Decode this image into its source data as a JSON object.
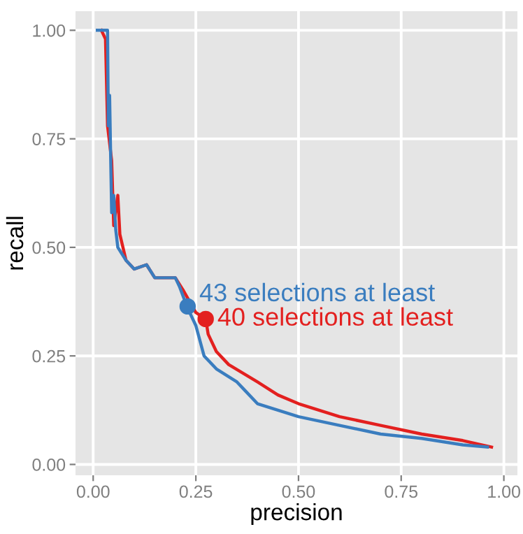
{
  "chart_data": {
    "type": "line",
    "xlabel": "precision",
    "ylabel": "recall",
    "xlim": [
      -0.043,
      1.033
    ],
    "ylim": [
      -0.025,
      1.044
    ],
    "xticks": [
      {
        "value": 0,
        "label": "0.00"
      },
      {
        "value": 0.25,
        "label": "0.25"
      },
      {
        "value": 0.5,
        "label": "0.50"
      },
      {
        "value": 0.75,
        "label": "0.75"
      },
      {
        "value": 1,
        "label": "1.00"
      }
    ],
    "yticks": [
      {
        "value": 0,
        "label": "0.00"
      },
      {
        "value": 0.25,
        "label": "0.25"
      },
      {
        "value": 0.5,
        "label": "0.50"
      },
      {
        "value": 0.75,
        "label": "0.75"
      },
      {
        "value": 1,
        "label": "1.00"
      }
    ],
    "grid": true,
    "series": [
      {
        "color": "#e3201f",
        "x": [
          0.02,
          0.03,
          0.035,
          0.045,
          0.05,
          0.06,
          0.065,
          0.08,
          0.1,
          0.13,
          0.15,
          0.2,
          0.22,
          0.25,
          0.274,
          0.28,
          0.3,
          0.33,
          0.4,
          0.45,
          0.5,
          0.6,
          0.7,
          0.8,
          0.9,
          0.97
        ],
        "values": [
          1.0,
          0.98,
          0.78,
          0.7,
          0.55,
          0.62,
          0.53,
          0.47,
          0.45,
          0.46,
          0.43,
          0.43,
          0.4,
          0.35,
          0.335,
          0.3,
          0.26,
          0.23,
          0.19,
          0.16,
          0.14,
          0.11,
          0.09,
          0.07,
          0.055,
          0.04
        ]
      },
      {
        "color": "#3a7dbf",
        "x": [
          0.01,
          0.035,
          0.037,
          0.04,
          0.045,
          0.05,
          0.055,
          0.06,
          0.08,
          0.1,
          0.13,
          0.15,
          0.2,
          0.21,
          0.23,
          0.25,
          0.27,
          0.3,
          0.35,
          0.37,
          0.4,
          0.5,
          0.6,
          0.7,
          0.8,
          0.9,
          0.96
        ],
        "values": [
          1.0,
          1.0,
          0.78,
          0.85,
          0.58,
          0.62,
          0.54,
          0.5,
          0.47,
          0.45,
          0.46,
          0.43,
          0.43,
          0.41,
          0.36,
          0.32,
          0.25,
          0.22,
          0.19,
          0.17,
          0.14,
          0.11,
          0.09,
          0.07,
          0.06,
          0.045,
          0.04
        ]
      },
      {
        "type": "scatter",
        "color": "#3a7dbf",
        "x": [
          0.23
        ],
        "values": [
          0.364
        ]
      },
      {
        "type": "scatter",
        "color": "#e3201f",
        "x": [
          0.274
        ],
        "values": [
          0.335
        ]
      }
    ],
    "annotations": [
      {
        "text": "43 selections at least",
        "x": 0.23,
        "y": 0.364
      },
      {
        "text": "40 selections at least",
        "x": 0.274,
        "y": 0.335
      }
    ]
  }
}
